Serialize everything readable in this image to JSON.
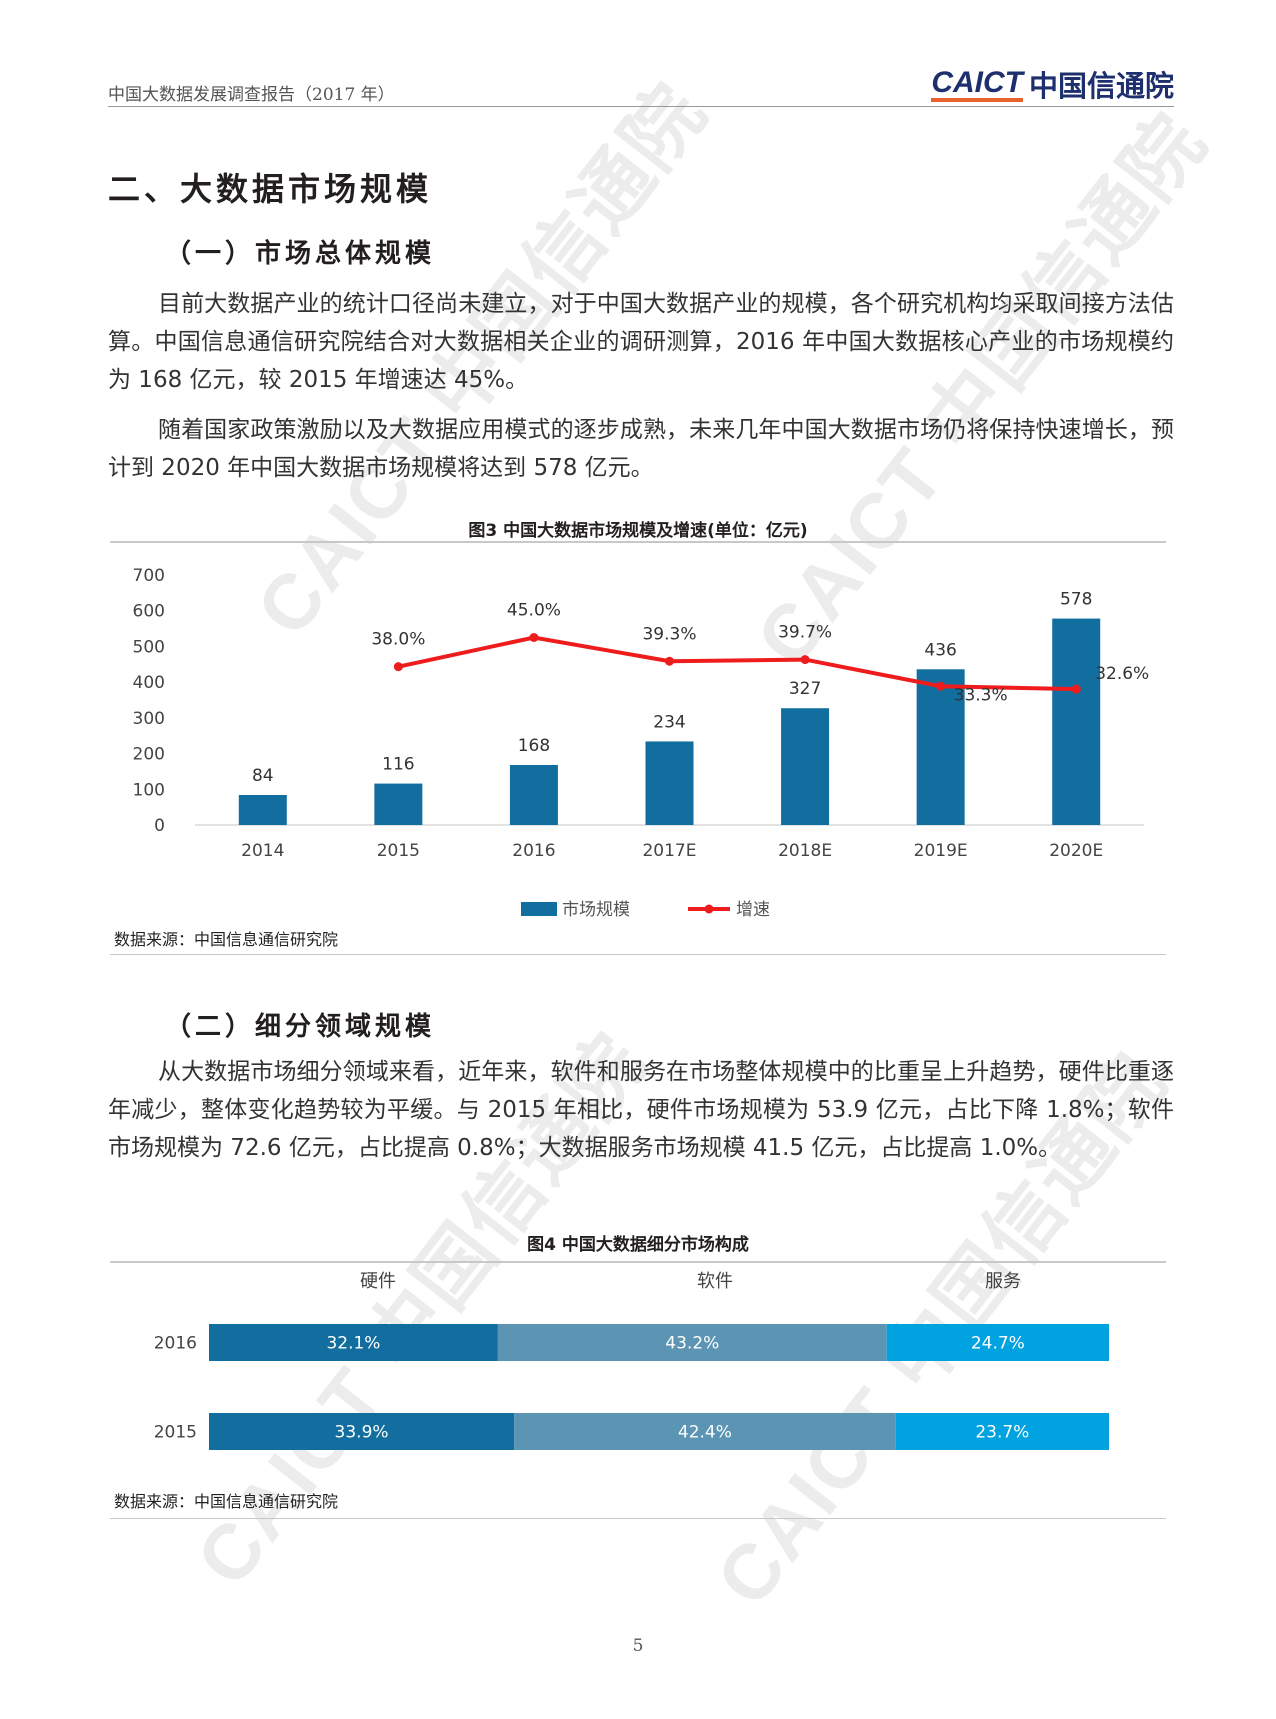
{
  "header": {
    "title": "中国大数据发展调查报告（2017 年）",
    "logo_en": "CAICT",
    "logo_cn": "中国信通院"
  },
  "watermark": "CAICT 中国信通院",
  "section": {
    "title": "二、大数据市场规模"
  },
  "sub1": {
    "title": "（一）市场总体规模",
    "paragraphs": [
      "目前大数据产业的统计口径尚未建立，对于中国大数据产业的规模，各个研究机构均采取间接方法估算。中国信息通信研究院结合对大数据相关企业的调研测算，2016 年中国大数据核心产业的市场规模约为 168 亿元，较 2015 年增速达 45%。",
      "随着国家政策激励以及大数据应用模式的逐步成熟，未来几年中国大数据市场仍将保持快速增长，预计到 2020 年中国大数据市场规模将达到 578 亿元。"
    ]
  },
  "fig3": {
    "source": "数据来源：中国信息通信研究院"
  },
  "sub2": {
    "title": "（二）细分领域规模",
    "paragraphs": [
      "从大数据市场细分领域来看，近年来，软件和服务在市场整体规模中的比重呈上升趋势，硬件比重逐年减少，整体变化趋势较为平缓。与 2015 年相比，硬件市场规模为 53.9 亿元，占比下降 1.8%；软件市场规模为 72.6 亿元，占比提高 0.8%；大数据服务市场规模 41.5 亿元，占比提高 1.0%。"
    ]
  },
  "fig4": {
    "source": "数据来源：中国信息通信研究院"
  },
  "page_number": "5",
  "chart_data": [
    {
      "type": "bar+line",
      "title": "图3 中国大数据市场规模及增速(单位：亿元)",
      "categories": [
        "2014",
        "2015",
        "2016",
        "2017E",
        "2018E",
        "2019E",
        "2020E"
      ],
      "yticks": [
        "0",
        "100",
        "200",
        "300",
        "400",
        "500",
        "600",
        "700"
      ],
      "ylim": [
        0,
        700
      ],
      "secondary_ylim": [
        0,
        60
      ],
      "series": [
        {
          "name": "市场规模",
          "type": "bar",
          "color": "#136ea0",
          "values": [
            84,
            116,
            168,
            234,
            327,
            436,
            578
          ],
          "labels": [
            "84",
            "116",
            "168",
            "234",
            "327",
            "436",
            "578"
          ]
        },
        {
          "name": "增速",
          "type": "line",
          "color": "#ee1c1c",
          "values": [
            null,
            38.0,
            45.0,
            39.3,
            39.7,
            33.3,
            32.6
          ],
          "labels": [
            "",
            "38.0%",
            "45.0%",
            "39.3%",
            "39.7%",
            "33.3%",
            "32.6%"
          ]
        }
      ],
      "legend": "bottom",
      "grid": false
    },
    {
      "type": "stacked-bar-horizontal",
      "title": "图4 中国大数据细分市场构成",
      "categories": [
        "2016",
        "2015"
      ],
      "series": [
        {
          "name": "硬件",
          "color": "#136ea0",
          "values": [
            32.1,
            33.9
          ],
          "labels": [
            "32.1%",
            "33.9%"
          ]
        },
        {
          "name": "软件",
          "color": "#5b95b3",
          "values": [
            43.2,
            42.4
          ],
          "labels": [
            "43.2%",
            "42.4%"
          ]
        },
        {
          "name": "服务",
          "color": "#00a2e0",
          "values": [
            24.7,
            23.7
          ],
          "labels": [
            "24.7%",
            "23.7%"
          ]
        }
      ],
      "legend": "top",
      "unit": "%"
    }
  ]
}
